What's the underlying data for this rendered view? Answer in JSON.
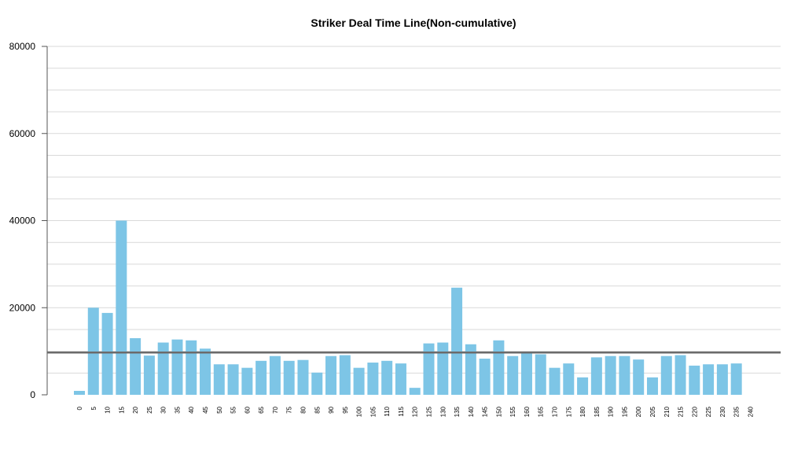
{
  "chart_data": {
    "type": "bar",
    "title": "Striker Deal Time Line(Non-cumulative)",
    "xlabel": "",
    "ylabel": "",
    "ylim": [
      0,
      80000
    ],
    "yticks": [
      0,
      20000,
      40000,
      60000,
      80000
    ],
    "grid": true,
    "legend": "none",
    "bar_color": "#7dc5e6",
    "reference_line": {
      "value": 9700,
      "color": "#6b6b6b"
    },
    "categories": [
      "0",
      "5",
      "10",
      "15",
      "20",
      "25",
      "30",
      "35",
      "40",
      "45",
      "50",
      "55",
      "60",
      "65",
      "70",
      "75",
      "80",
      "85",
      "90",
      "95",
      "100",
      "105",
      "110",
      "115",
      "120",
      "125",
      "130",
      "135",
      "140",
      "145",
      "150",
      "155",
      "160",
      "165",
      "170",
      "175",
      "180",
      "185",
      "190",
      "195",
      "200",
      "205",
      "210",
      "215",
      "220",
      "225",
      "230",
      "235",
      "240"
    ],
    "values": [
      900,
      20000,
      18800,
      40000,
      13000,
      9000,
      12000,
      12700,
      12500,
      10600,
      7000,
      7000,
      6200,
      7800,
      8900,
      7800,
      8000,
      5100,
      8900,
      9100,
      6200,
      7400,
      7800,
      7200,
      1600,
      11800,
      12000,
      24600,
      11600,
      8300,
      12500,
      8900,
      9600,
      9300,
      6200,
      7200,
      4000,
      8600,
      8900,
      8900,
      8100,
      4000,
      8900,
      9100,
      6700,
      7000,
      7000,
      7200,
      0
    ]
  }
}
